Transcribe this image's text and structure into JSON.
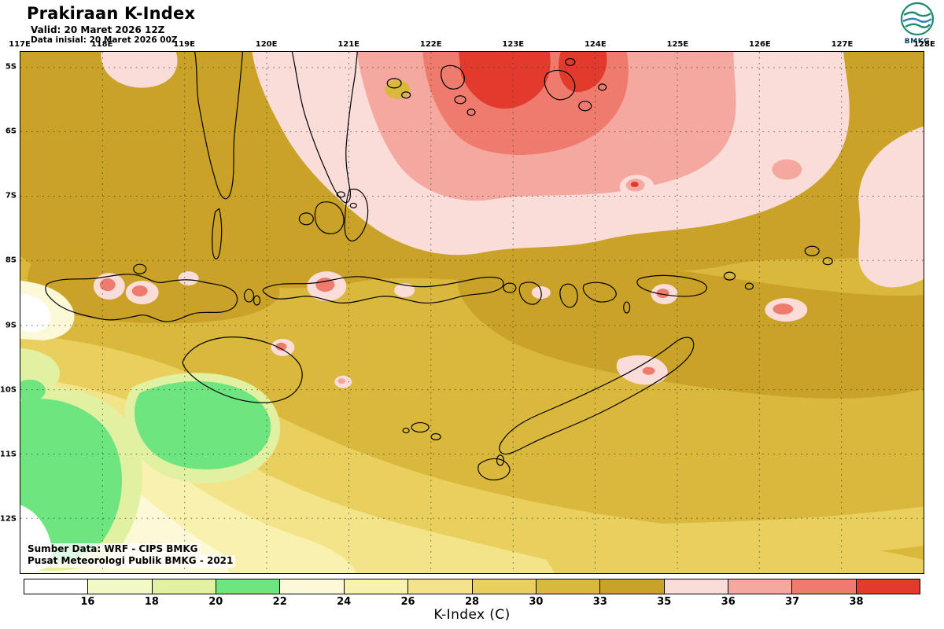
{
  "header": {
    "title": "Prakiraan K-Index",
    "valid_line": "Valid: 20 Maret 2026 12Z",
    "init_line": "Data inisial: 20 Maret 2026 00Z"
  },
  "logo": {
    "label": "BMKG"
  },
  "map": {
    "lon_labels": [
      "117E",
      "118E",
      "119E",
      "120E",
      "121E",
      "122E",
      "123E",
      "124E",
      "125E",
      "126E",
      "127E",
      "128E"
    ],
    "lat_labels": [
      "5S",
      "6S",
      "7S",
      "8S",
      "9S",
      "10S",
      "11S",
      "12S"
    ],
    "attribution": {
      "line1": "Sumber Data: WRF - CIPS BMKG",
      "line2": "Pusat Meteorologi Publik BMKG - 2021"
    }
  },
  "legend": {
    "title": "K-Index (C)",
    "ticks": [
      "16",
      "18",
      "20",
      "22",
      "24",
      "26",
      "28",
      "30",
      "33",
      "35",
      "36",
      "37",
      "38"
    ],
    "colors": [
      "#ffffff",
      "#f3f9c6",
      "#e2f0a2",
      "#6ee57e",
      "#fcf9d8",
      "#f8f1af",
      "#f3e489",
      "#e9d05e",
      "#d9b83c",
      "#c9a227",
      "#fadcd8",
      "#f5a89f",
      "#ee7b6e",
      "#e23b2e"
    ]
  },
  "chart_data": {
    "type": "heatmap",
    "title": "Prakiraan K-Index",
    "valid": "20 Maret 2026 12Z",
    "initial": "20 Maret 2026 00Z",
    "colorbar_label": "K-Index (C)",
    "lon_extent": [
      "117E",
      "128E"
    ],
    "lat_extent": [
      "5S",
      "12S"
    ],
    "levels": [
      16,
      18,
      20,
      22,
      24,
      26,
      28,
      30,
      33,
      35,
      36,
      37,
      38
    ],
    "palette": [
      "#ffffff",
      "#f3f9c6",
      "#e2f0a2",
      "#6ee57e",
      "#fcf9d8",
      "#f8f1af",
      "#f3e489",
      "#e9d05e",
      "#d9b83c",
      "#c9a227",
      "#fadcd8",
      "#f5a89f",
      "#ee7b6e",
      "#e23b2e"
    ],
    "notes": "Filled-contour K-index forecast over Nusa Tenggara / South Sulawesi (117E-128E, 5S-12.5S). High K-index core (36-38+, red/pink) north of the Flores Sea near 121E-125E 5S-7S; pale-pink patches along right edge and island chain; dominant gold band 28-35 across the region; low values (16-22, green/white) southwest of Sumbawa around 117E-119E 10S-12.5S."
  }
}
